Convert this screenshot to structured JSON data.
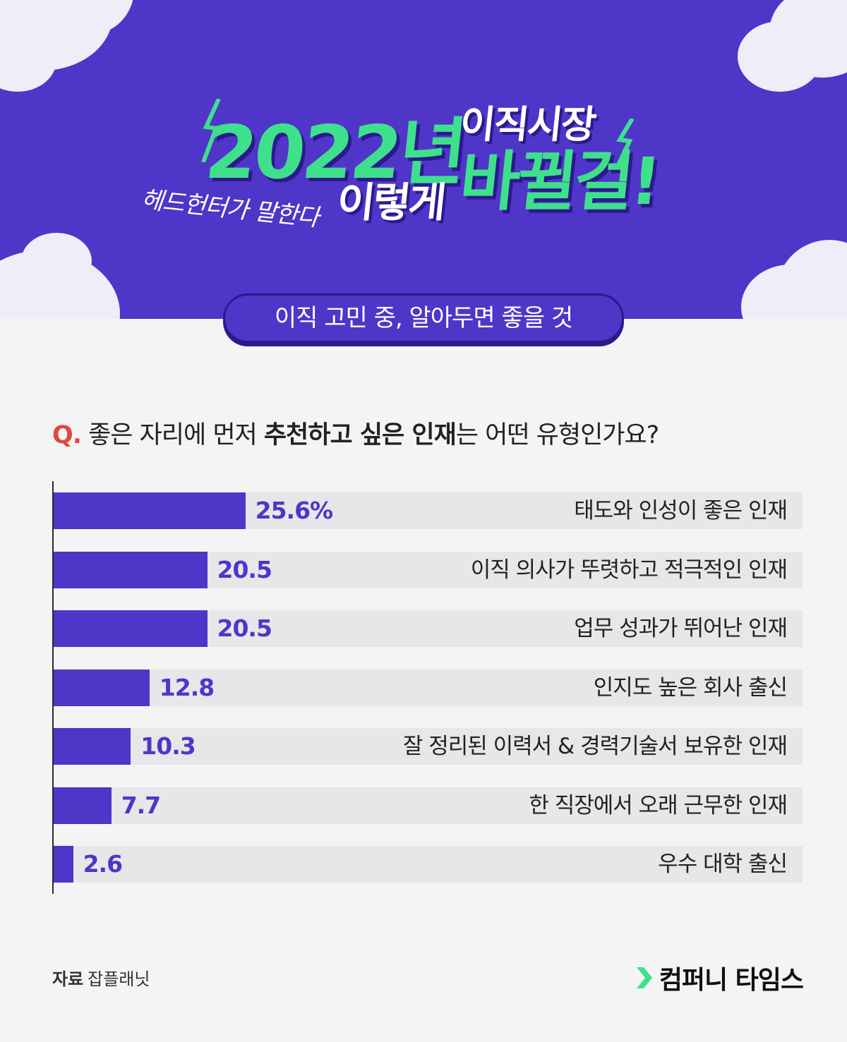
{
  "header": {
    "year": "2022년",
    "market": "이직시장",
    "this_way": "이렇게",
    "change": "바뀔걸!",
    "handwriting": "헤드헌터가 말한다"
  },
  "subtitle": "이직 고민 중, 알아두면 좋을 것",
  "question": {
    "prefix": "Q.",
    "part1": "좋은 자리에 먼저 ",
    "bold": "추천하고 싶은 인재",
    "part2": "는 어떤 유형인가요?"
  },
  "chart_data": {
    "type": "bar",
    "orientation": "horizontal",
    "categories": [
      "태도와 인성이 좋은 인재",
      "이직 의사가 뚜렷하고 적극적인 인재",
      "업무 성과가 뛰어난 인재",
      "인지도 높은 회사 출신",
      "잘 정리된 이력서 & 경력기술서 보유한 인재",
      "한 직장에서 오래 근무한 인재",
      "우수 대학 출신"
    ],
    "values": [
      25.6,
      20.5,
      20.5,
      12.8,
      10.3,
      7.7,
      2.6
    ],
    "value_labels": [
      "25.6%",
      "20.5",
      "20.5",
      "12.8",
      "10.3",
      "7.7",
      "2.6"
    ],
    "xlim": [
      0,
      100
    ],
    "grid": false,
    "colors": {
      "bar": "#5035c9",
      "track": "#e5e7e8"
    }
  },
  "footer": {
    "source_label": "자료",
    "source": "잡플래닛",
    "brand": "컴퍼니 타임스"
  },
  "colors": {
    "primary": "#5035c9",
    "accent": "#3fe08c",
    "question_mark": "#e0473f"
  }
}
